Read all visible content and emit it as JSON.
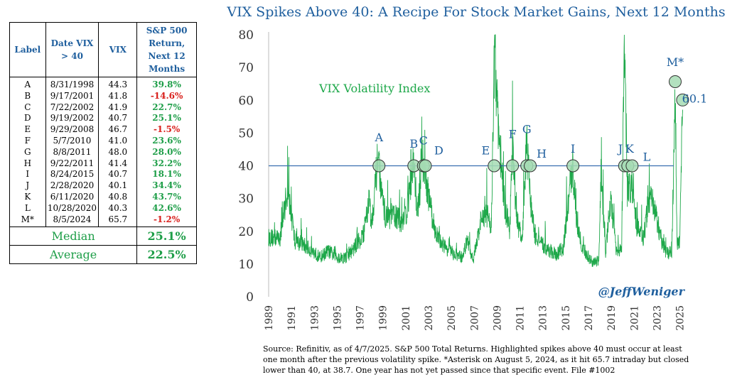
{
  "table": {
    "headers": {
      "label": "Label",
      "date": "Date VIX > 40",
      "vix": "VIX",
      "ret": "S&P 500 Return, Next 12 Months"
    },
    "rows": [
      {
        "label": "A",
        "date": "8/31/1998",
        "vix": "44.3",
        "ret": "39.8%",
        "sign": "pos"
      },
      {
        "label": "B",
        "date": "9/17/2001",
        "vix": "41.8",
        "ret": "-14.6%",
        "sign": "neg"
      },
      {
        "label": "C",
        "date": "7/22/2002",
        "vix": "41.9",
        "ret": "22.7%",
        "sign": "pos"
      },
      {
        "label": "D",
        "date": "9/19/2002",
        "vix": "40.7",
        "ret": "25.1%",
        "sign": "pos"
      },
      {
        "label": "E",
        "date": "9/29/2008",
        "vix": "46.7",
        "ret": "-1.5%",
        "sign": "neg"
      },
      {
        "label": "F",
        "date": "5/7/2010",
        "vix": "41.0",
        "ret": "23.6%",
        "sign": "pos"
      },
      {
        "label": "G",
        "date": "8/8/2011",
        "vix": "48.0",
        "ret": "28.0%",
        "sign": "pos"
      },
      {
        "label": "H",
        "date": "9/22/2011",
        "vix": "41.4",
        "ret": "32.2%",
        "sign": "pos"
      },
      {
        "label": "I",
        "date": "8/24/2015",
        "vix": "40.7",
        "ret": "18.1%",
        "sign": "pos"
      },
      {
        "label": "J",
        "date": "2/28/2020",
        "vix": "40.1",
        "ret": "34.4%",
        "sign": "pos"
      },
      {
        "label": "K",
        "date": "6/11/2020",
        "vix": "40.8",
        "ret": "43.7%",
        "sign": "pos"
      },
      {
        "label": "L",
        "date": "10/28/2020",
        "vix": "40.3",
        "ret": "42.6%",
        "sign": "pos"
      },
      {
        "label": "M*",
        "date": "8/5/2024",
        "vix": "65.7",
        "ret": "-1.2%",
        "sign": "neg"
      }
    ],
    "median_label": "Median",
    "median_value": "25.1%",
    "average_label": "Average",
    "average_value": "22.5%"
  },
  "chart_data": {
    "type": "line",
    "title": "VIX Spikes Above 40: A Recipe For Stock Market Gains, Next 12 Months",
    "series_label": "VIX Volatility Index",
    "watermark": "@JeffWeniger",
    "ylim": [
      0,
      80
    ],
    "yticks": [
      0,
      10,
      20,
      30,
      40,
      50,
      60,
      70,
      80
    ],
    "xlim": [
      1989,
      2025.4
    ],
    "xticks": [
      "1989",
      "1991",
      "1993",
      "1995",
      "1997",
      "1999",
      "2001",
      "2003",
      "2005",
      "2007",
      "2009",
      "2011",
      "2013",
      "2015",
      "2017",
      "2019",
      "2021",
      "2023",
      "2025"
    ],
    "threshold": 40,
    "colors": {
      "line": "#1ea84a",
      "threshold": "#3b6fb0",
      "marker_fill": "#a6dcb4",
      "marker_stroke": "#333333",
      "label": "#1f5f9e"
    },
    "series_anchors": [
      [
        1990.0,
        18
      ],
      [
        1990.6,
        32
      ],
      [
        1990.9,
        27
      ],
      [
        1991.3,
        17
      ],
      [
        1992.0,
        16
      ],
      [
        1992.8,
        14
      ],
      [
        1993.5,
        12
      ],
      [
        1994.2,
        14
      ],
      [
        1995.0,
        12
      ],
      [
        1995.8,
        12
      ],
      [
        1996.5,
        15
      ],
      [
        1997.3,
        19
      ],
      [
        1997.8,
        30
      ],
      [
        1998.0,
        22
      ],
      [
        1998.6,
        44
      ],
      [
        1998.9,
        30
      ],
      [
        1999.3,
        24
      ],
      [
        2000.0,
        25
      ],
      [
        2000.6,
        23
      ],
      [
        2001.1,
        26
      ],
      [
        2001.7,
        42
      ],
      [
        2002.0,
        24
      ],
      [
        2002.5,
        42
      ],
      [
        2002.9,
        33
      ],
      [
        2003.3,
        24
      ],
      [
        2003.8,
        18
      ],
      [
        2004.5,
        15
      ],
      [
        2005.2,
        13
      ],
      [
        2005.9,
        12
      ],
      [
        2006.4,
        17
      ],
      [
        2006.9,
        11
      ],
      [
        2007.5,
        22
      ],
      [
        2008.0,
        26
      ],
      [
        2008.5,
        22
      ],
      [
        2008.8,
        80
      ],
      [
        2008.95,
        60
      ],
      [
        2009.3,
        42
      ],
      [
        2009.7,
        27
      ],
      [
        2010.1,
        20
      ],
      [
        2010.35,
        45
      ],
      [
        2010.7,
        24
      ],
      [
        2011.2,
        17
      ],
      [
        2011.6,
        48
      ],
      [
        2011.9,
        30
      ],
      [
        2012.3,
        18
      ],
      [
        2012.9,
        16
      ],
      [
        2013.5,
        14
      ],
      [
        2014.2,
        13
      ],
      [
        2014.8,
        15
      ],
      [
        2015.6,
        40
      ],
      [
        2016.0,
        22
      ],
      [
        2016.5,
        15
      ],
      [
        2017.2,
        11
      ],
      [
        2017.9,
        10
      ],
      [
        2018.1,
        37
      ],
      [
        2018.5,
        14
      ],
      [
        2018.95,
        30
      ],
      [
        2019.4,
        15
      ],
      [
        2019.9,
        14
      ],
      [
        2020.15,
        80
      ],
      [
        2020.4,
        32
      ],
      [
        2020.8,
        35
      ],
      [
        2021.2,
        22
      ],
      [
        2021.8,
        18
      ],
      [
        2022.4,
        31
      ],
      [
        2022.9,
        25
      ],
      [
        2023.4,
        17
      ],
      [
        2023.9,
        13
      ],
      [
        2024.3,
        14
      ],
      [
        2024.59,
        65.7
      ],
      [
        2024.75,
        16
      ],
      [
        2025.0,
        18
      ],
      [
        2025.24,
        60.1
      ]
    ],
    "events": [
      {
        "label": "A",
        "x": 1998.66,
        "y": 40,
        "lx": 1998.66,
        "ly": 47.5
      },
      {
        "label": "B",
        "x": 2001.71,
        "y": 40,
        "lx": 2001.71,
        "ly": 45.5
      },
      {
        "label": "C",
        "x": 2002.55,
        "y": 40,
        "lx": 2002.55,
        "ly": 46.5
      },
      {
        "label": "D",
        "x": 2002.72,
        "y": 40,
        "lx": 2003.9,
        "ly": 43.5
      },
      {
        "label": "E",
        "x": 2008.74,
        "y": 40,
        "lx": 2008.0,
        "ly": 43.5
      },
      {
        "label": "F",
        "x": 2010.35,
        "y": 40,
        "lx": 2010.35,
        "ly": 48.5
      },
      {
        "label": "G",
        "x": 2011.6,
        "y": 40,
        "lx": 2011.6,
        "ly": 50.0
      },
      {
        "label": "H",
        "x": 2011.9,
        "y": 40,
        "lx": 2012.9,
        "ly": 42.5
      },
      {
        "label": "I",
        "x": 2015.64,
        "y": 40,
        "lx": 2015.64,
        "ly": 44.0
      },
      {
        "label": "J",
        "x": 2020.16,
        "y": 40,
        "lx": 2019.8,
        "ly": 44.0
      },
      {
        "label": "K",
        "x": 2020.44,
        "y": 40,
        "lx": 2020.6,
        "ly": 44.0
      },
      {
        "label": "L",
        "x": 2020.82,
        "y": 40,
        "lx": 2022.1,
        "ly": 41.5
      },
      {
        "label": "M*",
        "x": 2024.59,
        "y": 65.7,
        "lx": 2024.59,
        "ly": 70.5
      },
      {
        "label": "60.1",
        "x": 2025.24,
        "y": 60.1,
        "lx": 2026.3,
        "ly": 59.3
      }
    ]
  },
  "source_note": "Source: Refinitiv, as of 4/7/2025. S&P 500 Total Returns. Highlighted spikes above 40 must occur at least one month after the previous volatility spike. *Asterisk on August 5, 2024, as it hit 65.7 intraday but closed lower than 40, at 38.7. One year has not yet passed since that specific event. File #1002"
}
